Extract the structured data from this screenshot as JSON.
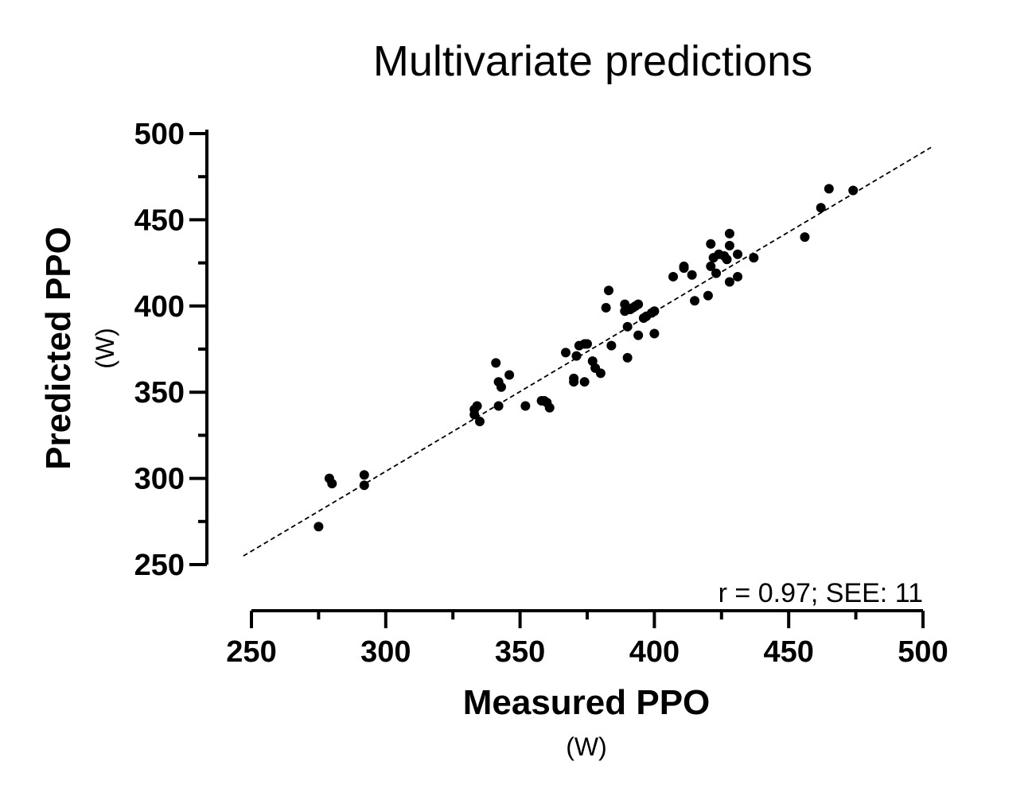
{
  "chart_data": {
    "type": "scatter",
    "title": "Multivariate predictions",
    "xlabel": "Measured PPO",
    "xunit": "(W)",
    "ylabel": "Predicted PPO",
    "yunit": "(W)",
    "xlim": [
      250,
      500
    ],
    "ylim": [
      250,
      500
    ],
    "xticks": [
      250,
      300,
      350,
      400,
      450,
      500
    ],
    "yticks": [
      250,
      300,
      350,
      400,
      450,
      500
    ],
    "x_tick_labels": [
      "250",
      "300",
      "350",
      "400",
      "450",
      "500"
    ],
    "y_tick_labels": [
      "250",
      "300",
      "350",
      "400",
      "450",
      "500"
    ],
    "annotation": "r = 0.97; SEE: 11",
    "grid": false,
    "regression_line": {
      "style": "dashed",
      "x": [
        247,
        503
      ],
      "y": [
        255,
        492
      ]
    },
    "points": [
      {
        "x": 275,
        "y": 272
      },
      {
        "x": 279,
        "y": 300
      },
      {
        "x": 280,
        "y": 297
      },
      {
        "x": 292,
        "y": 302
      },
      {
        "x": 292,
        "y": 296
      },
      {
        "x": 333,
        "y": 337
      },
      {
        "x": 333,
        "y": 340
      },
      {
        "x": 334,
        "y": 342
      },
      {
        "x": 335,
        "y": 333
      },
      {
        "x": 341,
        "y": 367
      },
      {
        "x": 342,
        "y": 356
      },
      {
        "x": 342,
        "y": 342
      },
      {
        "x": 343,
        "y": 353
      },
      {
        "x": 346,
        "y": 360
      },
      {
        "x": 352,
        "y": 342
      },
      {
        "x": 358,
        "y": 345
      },
      {
        "x": 359,
        "y": 345
      },
      {
        "x": 360,
        "y": 344
      },
      {
        "x": 361,
        "y": 341
      },
      {
        "x": 367,
        "y": 373
      },
      {
        "x": 370,
        "y": 356
      },
      {
        "x": 370,
        "y": 358
      },
      {
        "x": 371,
        "y": 371
      },
      {
        "x": 372,
        "y": 377
      },
      {
        "x": 374,
        "y": 378
      },
      {
        "x": 374,
        "y": 356
      },
      {
        "x": 375,
        "y": 378
      },
      {
        "x": 377,
        "y": 368
      },
      {
        "x": 378,
        "y": 364
      },
      {
        "x": 380,
        "y": 361
      },
      {
        "x": 382,
        "y": 399
      },
      {
        "x": 383,
        "y": 409
      },
      {
        "x": 384,
        "y": 377
      },
      {
        "x": 389,
        "y": 401
      },
      {
        "x": 389,
        "y": 397
      },
      {
        "x": 390,
        "y": 388
      },
      {
        "x": 390,
        "y": 370
      },
      {
        "x": 391,
        "y": 398
      },
      {
        "x": 392,
        "y": 399
      },
      {
        "x": 393,
        "y": 400
      },
      {
        "x": 394,
        "y": 401
      },
      {
        "x": 394,
        "y": 383
      },
      {
        "x": 396,
        "y": 393
      },
      {
        "x": 397,
        "y": 394
      },
      {
        "x": 399,
        "y": 396
      },
      {
        "x": 400,
        "y": 397
      },
      {
        "x": 400,
        "y": 384
      },
      {
        "x": 407,
        "y": 417
      },
      {
        "x": 411,
        "y": 423
      },
      {
        "x": 411,
        "y": 422
      },
      {
        "x": 414,
        "y": 418
      },
      {
        "x": 415,
        "y": 403
      },
      {
        "x": 420,
        "y": 406
      },
      {
        "x": 421,
        "y": 436
      },
      {
        "x": 421,
        "y": 423
      },
      {
        "x": 422,
        "y": 428
      },
      {
        "x": 423,
        "y": 419
      },
      {
        "x": 424,
        "y": 430
      },
      {
        "x": 426,
        "y": 429
      },
      {
        "x": 427,
        "y": 427
      },
      {
        "x": 428,
        "y": 442
      },
      {
        "x": 428,
        "y": 435
      },
      {
        "x": 428,
        "y": 414
      },
      {
        "x": 431,
        "y": 430
      },
      {
        "x": 431,
        "y": 417
      },
      {
        "x": 437,
        "y": 428
      },
      {
        "x": 456,
        "y": 440
      },
      {
        "x": 462,
        "y": 457
      },
      {
        "x": 465,
        "y": 468
      },
      {
        "x": 474,
        "y": 467
      }
    ]
  }
}
